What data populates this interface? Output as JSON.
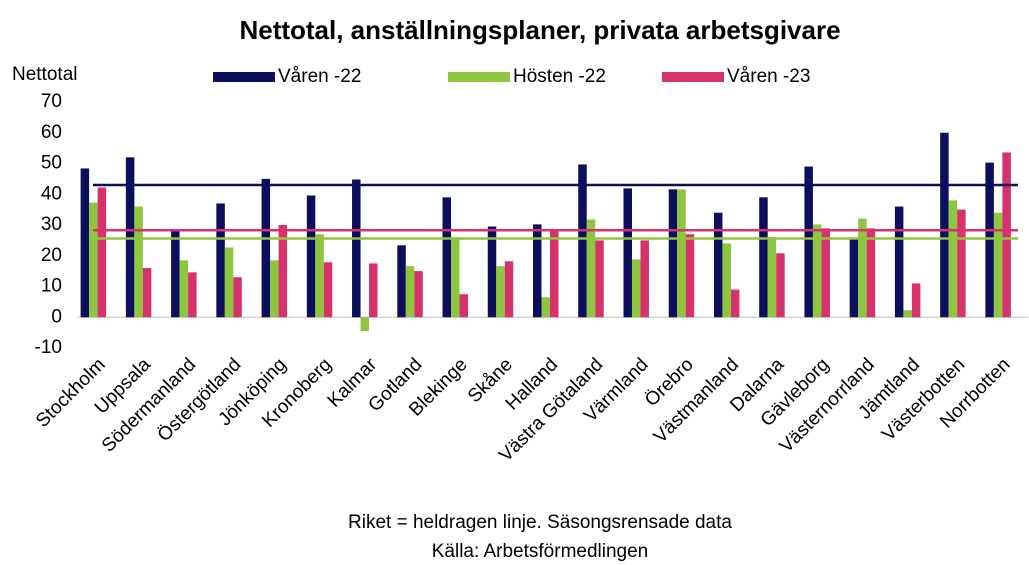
{
  "chart_data": {
    "type": "bar",
    "title": "Nettotal, anställningsplaner, privata arbetsgivare",
    "y_label": "Nettotal",
    "notes": [
      "Riket = heldragen linje. Säsongsrensade data",
      "Källa: Arbetsförmedlingen"
    ],
    "categories": [
      "Stockholm",
      "Uppsala",
      "Södermanland",
      "Östergötland",
      "Jönköping",
      "Kronoberg",
      "Kalmar",
      "Gotland",
      "Blekinge",
      "Skåne",
      "Halland",
      "Västra Götaland",
      "Värmland",
      "Örebro",
      "Västmanland",
      "Dalarna",
      "Gävleborg",
      "Västernorrland",
      "Jämtland",
      "Västerbotten",
      "Norrbotten"
    ],
    "series": [
      {
        "name": "Våren -22",
        "color": "#0b0f5c",
        "riket": 43,
        "values": [
          48.4,
          52,
          28.6,
          37,
          45,
          39.6,
          44.8,
          23.4,
          39,
          29.5,
          30.2,
          49.7,
          41.9,
          41.6,
          34,
          39,
          49,
          25.6,
          36,
          60,
          50.3
        ]
      },
      {
        "name": "Hösten -22",
        "color": "#8dc63f",
        "riket": 25.6,
        "values": [
          37.3,
          36,
          18.5,
          22.7,
          18.5,
          27,
          -4.5,
          16.6,
          26,
          16.6,
          6.5,
          31.8,
          18.8,
          41.6,
          24,
          26,
          30.2,
          32.1,
          2.3,
          38,
          34
        ]
      },
      {
        "name": "Våren -23",
        "color": "#d6336c",
        "riket": 28.3,
        "values": [
          42.2,
          16,
          14.6,
          13,
          30,
          17.9,
          17.5,
          15,
          7.5,
          18.2,
          28.6,
          25,
          25,
          27,
          9,
          20.8,
          28.9,
          28.9,
          11,
          35,
          53.6
        ]
      }
    ],
    "ylim": [
      -10,
      70
    ],
    "yticks": [
      -10,
      0,
      10,
      20,
      30,
      40,
      50,
      60,
      70
    ],
    "grid": false,
    "legend": "top"
  }
}
